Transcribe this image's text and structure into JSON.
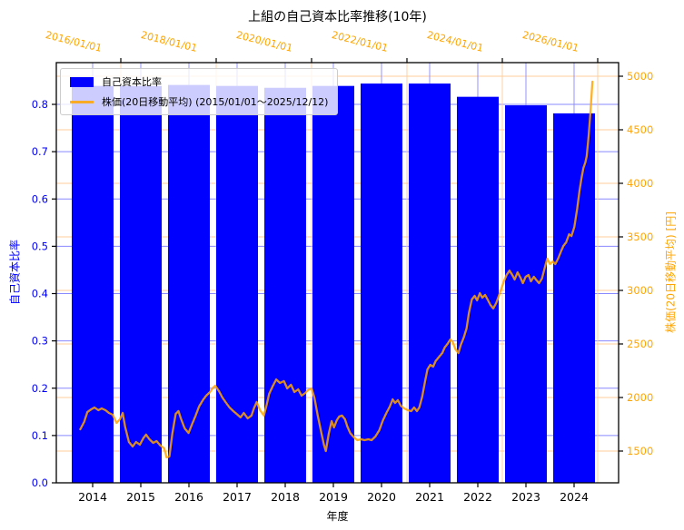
{
  "figure": {
    "title": "上組の自己資本比率推移(10年)",
    "xlabel": "年度",
    "ylabel_left": "自己資本比率",
    "ylabel_right": "株価(20日移動平均) [円]",
    "legend_items": [
      {
        "kind": "bar",
        "label": "自己資本比率",
        "color": "#0000ff"
      },
      {
        "kind": "line",
        "label": "株価(20日移動平均) (2015/01/01～2025/12/12)",
        "color": "#ffa500"
      }
    ],
    "colors": {
      "bar": "#0000ff",
      "line": "#ffa500",
      "left_axis_text": "#0000ff",
      "right_axis_text": "#ffa500",
      "top_axis_text": "#ffa500",
      "bottom_axis_text": "#000000",
      "grid_blue": "#8888ff",
      "grid_orange": "#ffcc99",
      "spine": "#000000"
    }
  },
  "chart_data": [
    {
      "type": "bar",
      "name": "自己資本比率",
      "axis": "left",
      "xlabel": "年度",
      "ylabel": "自己資本比率",
      "categories": [
        "2014",
        "2015",
        "2016",
        "2017",
        "2018",
        "2019",
        "2020",
        "2021",
        "2022",
        "2023",
        "2024"
      ],
      "values": [
        0.839,
        0.839,
        0.841,
        0.839,
        0.835,
        0.839,
        0.844,
        0.844,
        0.816,
        0.798,
        0.781
      ],
      "yticks": [
        0.0,
        0.1,
        0.2,
        0.3,
        0.4,
        0.5,
        0.6,
        0.7,
        0.8
      ],
      "ylim": [
        0,
        0.889
      ],
      "grid": true,
      "legend_position": "upper left"
    },
    {
      "type": "line",
      "name": "株価(20日移動平均)",
      "axis": "right",
      "ylabel": "株価(20日移動平均) [円]",
      "yticks": [
        1500,
        2000,
        2500,
        3000,
        3500,
        4000,
        4500,
        5000
      ],
      "ylim": [
        1200,
        5130
      ],
      "top_axis": {
        "tick_years": [
          2016,
          2018,
          2020,
          2022,
          2024,
          2026
        ],
        "tick_labels": [
          "2016/01/01",
          "2018/01/01",
          "2020/01/01",
          "2022/01/01",
          "2024/01/01",
          "2026/01/01"
        ]
      },
      "x_years": [
        2015.15,
        2015.23,
        2015.3,
        2015.38,
        2015.45,
        2015.53,
        2015.6,
        2015.68,
        2015.75,
        2015.83,
        2015.91,
        2015.98,
        2016.04,
        2016.09,
        2016.17,
        2016.25,
        2016.32,
        2016.4,
        2016.47,
        2016.53,
        2016.6,
        2016.68,
        2016.75,
        2016.83,
        2016.91,
        2016.96,
        2017.02,
        2017.08,
        2017.15,
        2017.21,
        2017.26,
        2017.34,
        2017.42,
        2017.49,
        2017.57,
        2017.64,
        2017.72,
        2017.79,
        2017.87,
        2017.92,
        2017.98,
        2018.06,
        2018.13,
        2018.21,
        2018.28,
        2018.36,
        2018.43,
        2018.51,
        2018.58,
        2018.66,
        2018.74,
        2018.79,
        2018.85,
        2018.92,
        2019.0,
        2019.06,
        2019.11,
        2019.19,
        2019.26,
        2019.34,
        2019.42,
        2019.49,
        2019.57,
        2019.64,
        2019.72,
        2019.79,
        2019.87,
        2019.92,
        2020.0,
        2020.06,
        2020.13,
        2020.21,
        2020.26,
        2020.3,
        2020.36,
        2020.42,
        2020.47,
        2020.53,
        2020.58,
        2020.64,
        2020.7,
        2020.75,
        2020.81,
        2020.89,
        2020.96,
        2021.04,
        2021.11,
        2021.19,
        2021.26,
        2021.34,
        2021.42,
        2021.49,
        2021.57,
        2021.64,
        2021.7,
        2021.75,
        2021.81,
        2021.87,
        2021.94,
        2022.02,
        2022.09,
        2022.15,
        2022.21,
        2022.26,
        2022.32,
        2022.38,
        2022.43,
        2022.49,
        2022.55,
        2022.6,
        2022.66,
        2022.74,
        2022.79,
        2022.85,
        2022.91,
        2022.96,
        2023.02,
        2023.08,
        2023.13,
        2023.19,
        2023.25,
        2023.3,
        2023.36,
        2023.42,
        2023.47,
        2023.53,
        2023.58,
        2023.64,
        2023.7,
        2023.75,
        2023.81,
        2023.87,
        2023.92,
        2023.98,
        2024.04,
        2024.09,
        2024.15,
        2024.21,
        2024.26,
        2024.32,
        2024.38,
        2024.43,
        2024.49,
        2024.55,
        2024.6,
        2024.66,
        2024.72,
        2024.77,
        2024.83,
        2024.89,
        2024.94,
        2025.0,
        2025.06,
        2025.11,
        2025.17,
        2025.23,
        2025.28,
        2025.34,
        2025.4,
        2025.45,
        2025.51,
        2025.57,
        2025.62,
        2025.66,
        2025.7,
        2025.74,
        2025.77,
        2025.81,
        2025.85,
        2025.89
      ],
      "prices": [
        1703,
        1771,
        1864,
        1890,
        1907,
        1881,
        1898,
        1881,
        1856,
        1839,
        1763,
        1797,
        1856,
        1729,
        1585,
        1542,
        1585,
        1559,
        1619,
        1653,
        1610,
        1576,
        1593,
        1551,
        1525,
        1441,
        1449,
        1661,
        1847,
        1873,
        1805,
        1712,
        1669,
        1746,
        1831,
        1915,
        1975,
        2017,
        2051,
        2085,
        2110,
        2059,
        2000,
        1949,
        1907,
        1873,
        1847,
        1814,
        1856,
        1805,
        1831,
        1898,
        1958,
        1881,
        1831,
        1932,
        2034,
        2110,
        2169,
        2136,
        2153,
        2085,
        2119,
        2051,
        2076,
        2017,
        2042,
        2068,
        2085,
        2000,
        1831,
        1661,
        1559,
        1500,
        1661,
        1780,
        1720,
        1788,
        1822,
        1831,
        1797,
        1729,
        1669,
        1627,
        1602,
        1610,
        1602,
        1610,
        1602,
        1636,
        1695,
        1780,
        1856,
        1915,
        1983,
        1949,
        1975,
        1924,
        1898,
        1881,
        1873,
        1907,
        1873,
        1907,
        2008,
        2153,
        2263,
        2305,
        2288,
        2339,
        2373,
        2415,
        2466,
        2500,
        2542,
        2517,
        2449,
        2415,
        2492,
        2559,
        2644,
        2788,
        2915,
        2949,
        2907,
        2975,
        2932,
        2958,
        2907,
        2864,
        2831,
        2881,
        2941,
        3017,
        3093,
        3144,
        3186,
        3144,
        3102,
        3169,
        3119,
        3068,
        3127,
        3144,
        3085,
        3127,
        3093,
        3068,
        3110,
        3212,
        3297,
        3246,
        3271,
        3246,
        3297,
        3364,
        3415,
        3449,
        3525,
        3508,
        3593,
        3763,
        3932,
        4051,
        4144,
        4195,
        4254,
        4441,
        4678,
        4949
      ]
    }
  ]
}
